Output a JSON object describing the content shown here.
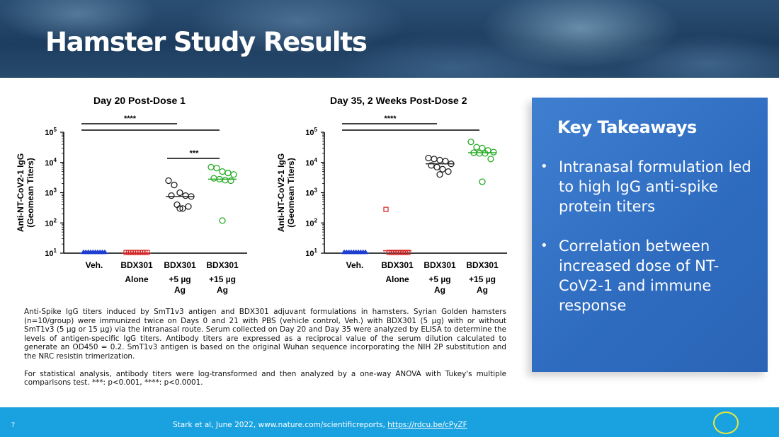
{
  "slide": {
    "title": "Hamster Study Results",
    "page_number": "7"
  },
  "charts_text": {
    "y_axis_label_line1": "Anti-NT-CoV2-1 IgG",
    "y_axis_label_line2": "(Geomean Titers)"
  },
  "chart_data": [
    {
      "type": "scatter",
      "title": "Day 20 Post-Dose 1",
      "yscale": "log",
      "ylim": [
        10,
        100000
      ],
      "ylabel": "Anti-NT-CoV2-1 IgG (Geomean Titers)",
      "y_ticks": [
        "10",
        "10",
        "10",
        "10",
        "10"
      ],
      "y_tick_exponents": [
        "1",
        "2",
        "3",
        "4",
        "5"
      ],
      "categories": [
        {
          "line1": "Veh.",
          "line2": "",
          "line3": ""
        },
        {
          "line1": "BDX301",
          "line2": "Alone",
          "line3": ""
        },
        {
          "line1": "BDX301",
          "line2": "+5 µg",
          "line3": "Ag"
        },
        {
          "line1": "BDX301",
          "line2": "+15 µg",
          "line3": "Ag"
        }
      ],
      "series": [
        {
          "marker": "triangle",
          "color": "#1f3fd0",
          "values": [
            10,
            10,
            10,
            10,
            10,
            10,
            10,
            10,
            10,
            10
          ],
          "geomean": 10
        },
        {
          "marker": "square",
          "color": "#d62020",
          "values": [
            10,
            10,
            10,
            10,
            10,
            10,
            10,
            10,
            10,
            10
          ],
          "geomean": 10
        },
        {
          "marker": "circle",
          "color": "#222222",
          "values": [
            2500,
            1800,
            1000,
            800,
            750,
            800,
            400,
            300,
            350,
            300
          ],
          "geomean": 750
        },
        {
          "marker": "circle",
          "color": "#22aa22",
          "values": [
            7000,
            6500,
            5000,
            4500,
            4000,
            3000,
            2800,
            2600,
            2500,
            120
          ],
          "geomean": 2800
        }
      ],
      "brackets": [
        {
          "from": 0,
          "to": 2,
          "label": "****"
        },
        {
          "from": 0,
          "to": 3,
          "label": ""
        },
        {
          "from": 2,
          "to": 3,
          "label": "***"
        }
      ]
    },
    {
      "type": "scatter",
      "title": "Day 35, 2 Weeks Post-Dose 2",
      "yscale": "log",
      "ylim": [
        10,
        100000
      ],
      "ylabel": "Anti-NT-CoV2-1 IgG (Geomean Titers)",
      "y_ticks": [
        "10",
        "10",
        "10",
        "10",
        "10"
      ],
      "y_tick_exponents": [
        "1",
        "2",
        "3",
        "4",
        "5"
      ],
      "categories": [
        {
          "line1": "Veh.",
          "line2": "",
          "line3": ""
        },
        {
          "line1": "BDX301",
          "line2": "Alone",
          "line3": ""
        },
        {
          "line1": "BDX301",
          "line2": "+5 µg",
          "line3": "Ag"
        },
        {
          "line1": "BDX301",
          "line2": "+15 µg",
          "line3": "Ag"
        }
      ],
      "series": [
        {
          "marker": "triangle",
          "color": "#1f3fd0",
          "values": [
            10,
            10,
            10,
            10,
            10,
            10,
            10,
            10,
            10,
            10
          ],
          "geomean": 10
        },
        {
          "marker": "square",
          "color": "#d62020",
          "values": [
            280,
            12,
            12,
            11,
            11,
            11,
            11,
            11,
            11,
            11
          ],
          "geomean": 12
        },
        {
          "marker": "circle",
          "color": "#222222",
          "values": [
            14000,
            13000,
            12000,
            11000,
            9000,
            8000,
            7000,
            6000,
            5000,
            4000
          ],
          "geomean": 9000
        },
        {
          "marker": "circle",
          "color": "#22aa22",
          "values": [
            48000,
            32000,
            30000,
            25000,
            22000,
            21000,
            20000,
            20000,
            13000,
            2300
          ],
          "geomean": 21000
        }
      ],
      "brackets": [
        {
          "from": 0,
          "to": 2,
          "label": "****"
        },
        {
          "from": 0,
          "to": 3,
          "label": ""
        }
      ]
    }
  ],
  "caption": {
    "paragraph1": "Anti-Spike IgG titers induced by SmT1v3 antigen and BDX301 adjuvant formulations in hamsters. Syrian Golden hamsters (n=10/group) were immunized twice on Days 0 and 21 with PBS (vehicle control, Veh.) with BDX301 (5 µg) with or without SmT1v3 (5 µg or 15 µg) via the intranasal route. Serum collected on Day 20 and Day 35 were analyzed by ELISA to determine the levels of antigen-specific IgG titers.  Antibody titers are expressed as a reciprocal value of the serum dilution calculated to generate an OD450 = 0.2. SmT1v3 antigen is based on the original Wuhan sequence incorporating the NIH 2P substitution and the NRC resistin trimerization.",
    "paragraph2": "For statistical analysis, antibody titers were log-transformed and then analyzed by a one-way ANOVA with Tukey's multiple comparisons test. ***: p<0.001, ****: p<0.0001."
  },
  "takeaways": {
    "title": "Key Takeaways",
    "bullets": [
      "Intranasal formulation led to high IgG anti-spike protein titers",
      "Correlation between increased dose of NT-CoV2-1 and immune response"
    ]
  },
  "footer": {
    "citation": "Stark et al, June 2022, www.nature.com/scientificreports, ",
    "link": "https://rdcu.be/cPyZF"
  },
  "colors": {
    "footer_bar": "#1aa2e0",
    "panel": "#2e6bbf",
    "accent_ring": "#e8e83a"
  }
}
